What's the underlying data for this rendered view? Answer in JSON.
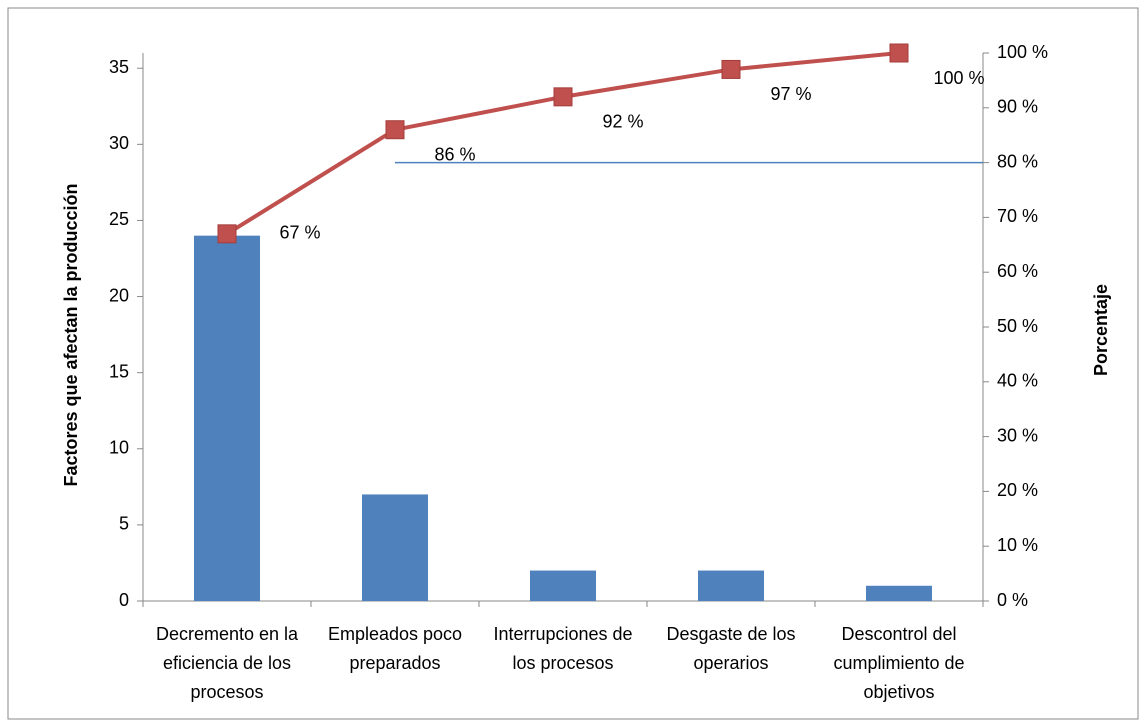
{
  "chart_data": {
    "type": "pareto",
    "categories": [
      "Decremento en la eficiencia de los procesos",
      "Empleados poco preparados",
      "Interrupciones de los procesos",
      "Desgaste de los operarios",
      "Descontrol del cumplimiento de objetivos"
    ],
    "y_label": "Factores que afectan la producción",
    "y2_label": "Porcentaje",
    "series": [
      {
        "type": "bar",
        "color": "#4f81bd",
        "values": [
          24,
          7,
          2,
          2,
          1
        ]
      },
      {
        "type": "line",
        "axis": "y2",
        "color": "#c0504d",
        "values": [
          67,
          86,
          92,
          97,
          100
        ],
        "value_labels": [
          "67 %",
          "86 %",
          "92 %",
          "97 %",
          "100 %"
        ]
      }
    ],
    "reference_line": {
      "value": 80,
      "color": "#4f81bd"
    },
    "ylim": [
      0,
      36
    ],
    "yticks": [
      0,
      5,
      10,
      15,
      20,
      25,
      30,
      35
    ],
    "y2lim": [
      0,
      100
    ],
    "y2ticks": [
      {
        "value": 0,
        "label": "0 %"
      },
      {
        "value": 10,
        "label": "10 %"
      },
      {
        "value": 20,
        "label": "20 %"
      },
      {
        "value": 30,
        "label": "30 %"
      },
      {
        "value": 40,
        "label": "40 %"
      },
      {
        "value": 50,
        "label": "50 %"
      },
      {
        "value": 60,
        "label": "60 %"
      },
      {
        "value": 70,
        "label": "70 %"
      },
      {
        "value": 80,
        "label": "80 %"
      },
      {
        "value": 90,
        "label": "90 %"
      },
      {
        "value": 100,
        "label": "100 %"
      }
    ]
  }
}
